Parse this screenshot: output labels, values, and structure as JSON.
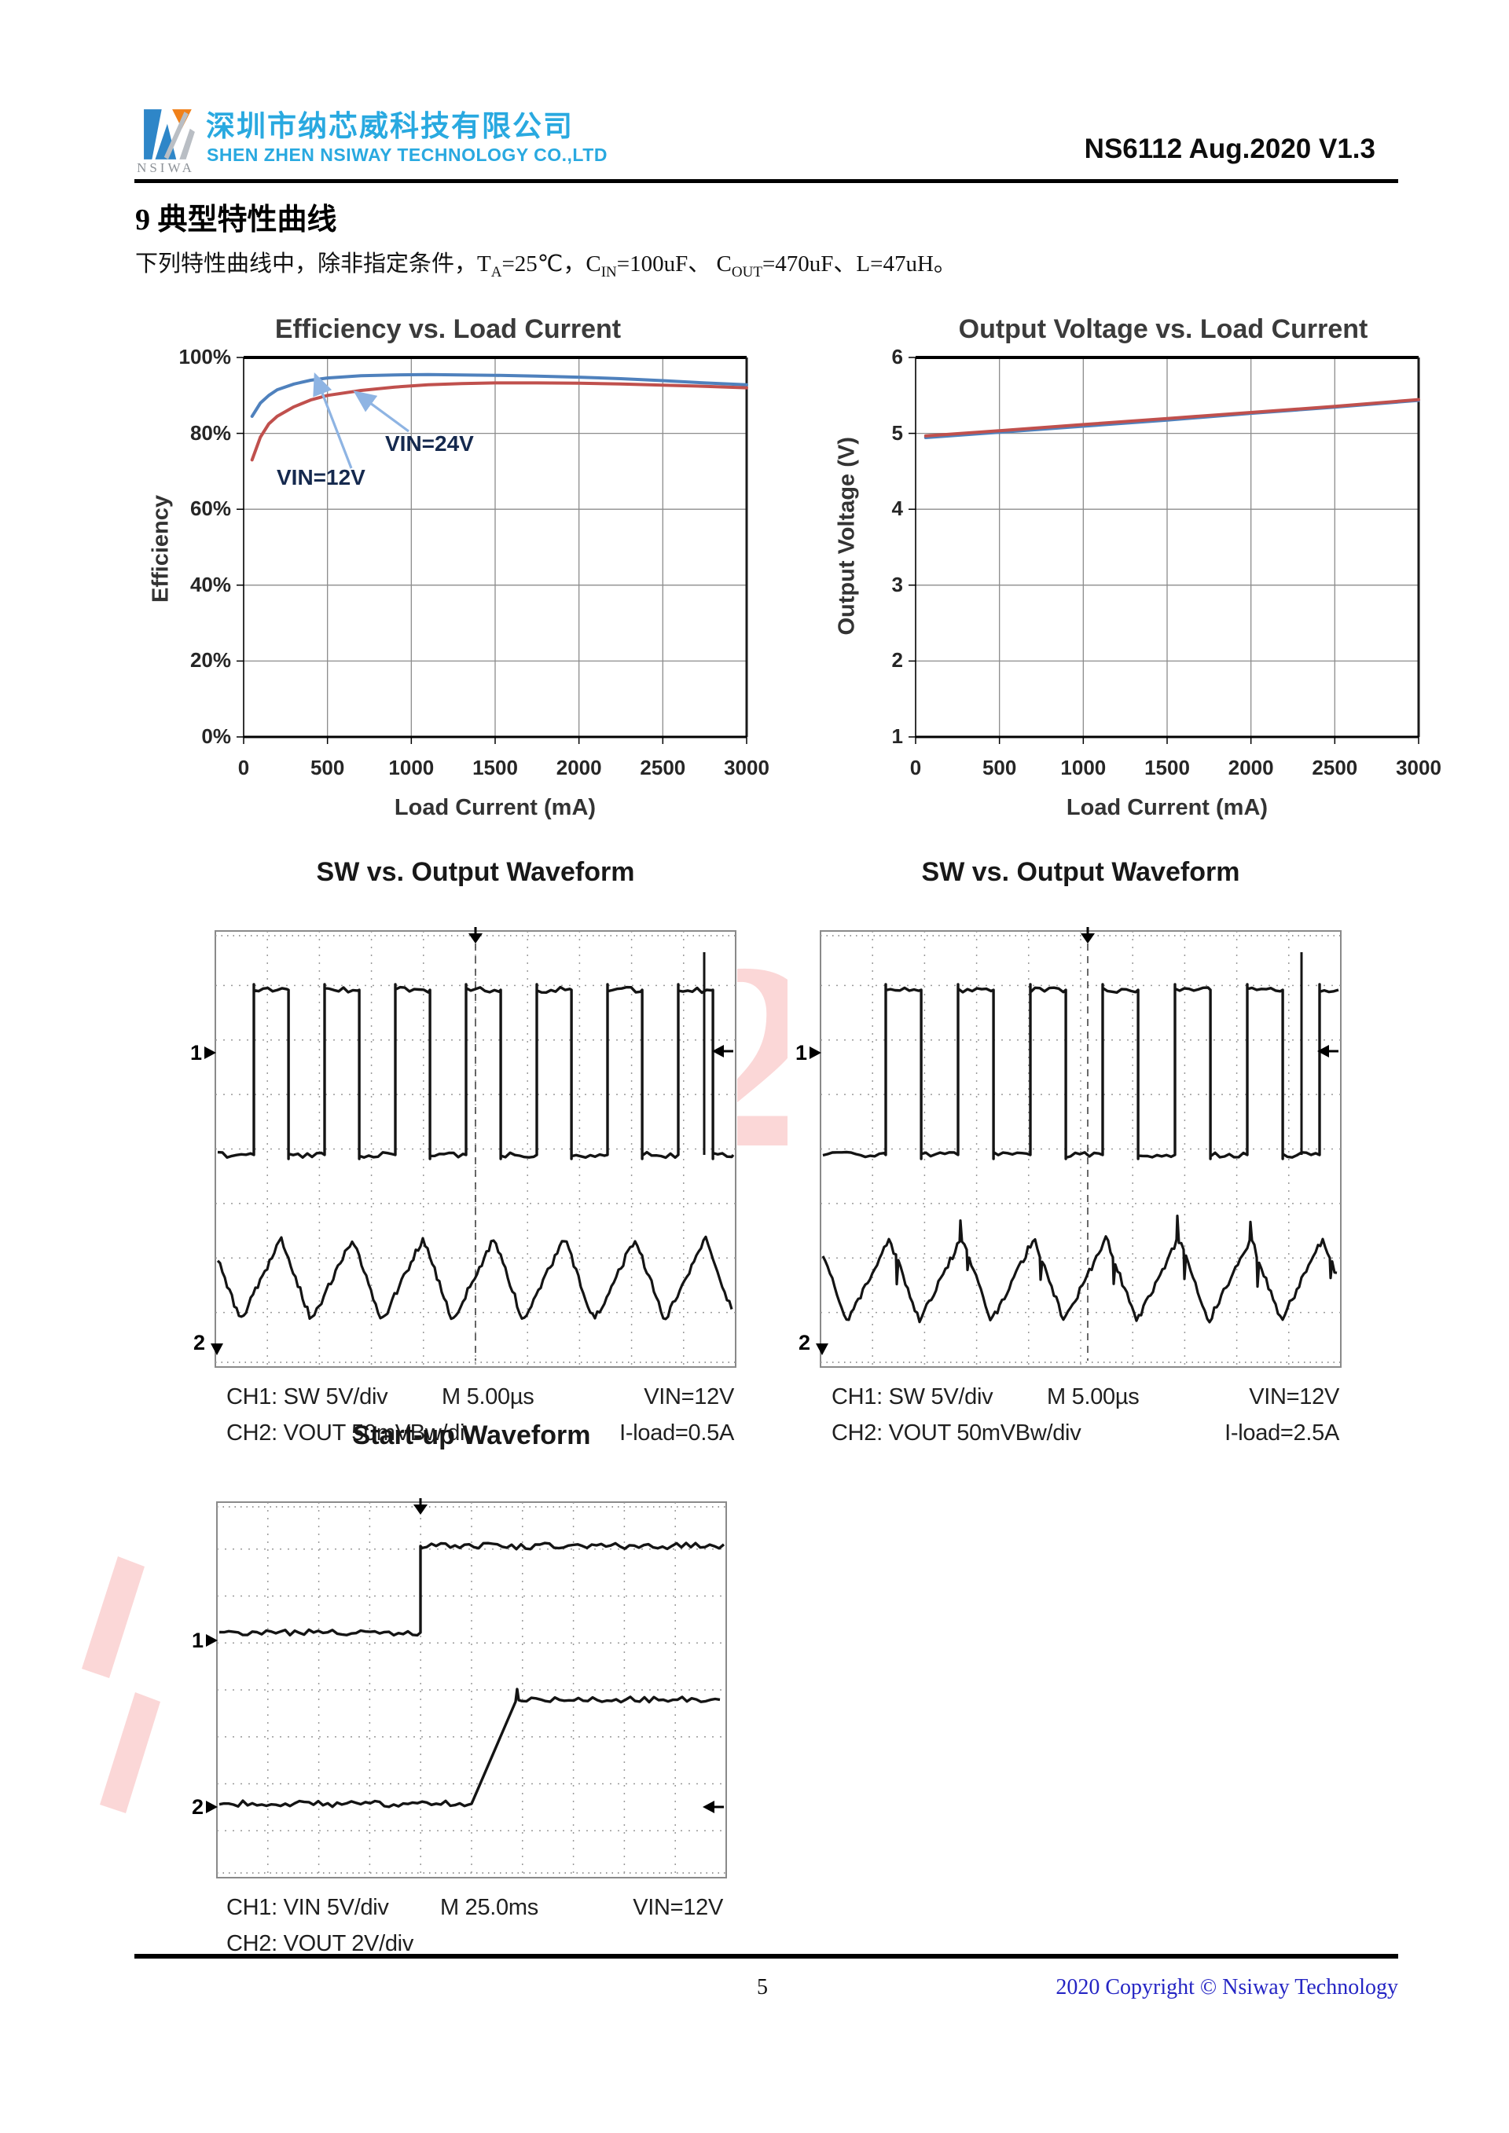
{
  "header": {
    "logo_text": "NSIWA",
    "company_cn": "深圳市纳芯威科技有限公司",
    "company_en": "SHEN ZHEN NSIWAY TECHNOLOGY CO.,LTD",
    "doc_code": "NS6112 Aug.2020 V1.3",
    "brand_color": "#29a9e0",
    "logo_blue": "#2e86c8",
    "logo_orange": "#f08019"
  },
  "section": {
    "title": "9 典型特性曲线",
    "cond": {
      "p1": "下列特性曲线中，除非指定条件，T",
      "s1": "A",
      "p2": "=25℃，C",
      "s2": "IN",
      "p3": "=100uF、 C",
      "s3": "OUT",
      "p4": "=470uF、L=47uH。"
    }
  },
  "chart_data": [
    {
      "id": "efficiency",
      "type": "line",
      "title": "Efficiency vs. Load Current",
      "xlabel": "Load Current (mA)",
      "ylabel": "Efficiency",
      "xlim": [
        0,
        3000
      ],
      "ylim": [
        0,
        100
      ],
      "grid": "on",
      "xticks": [
        "0",
        "500",
        "1000",
        "1500",
        "2000",
        "2500",
        "3000"
      ],
      "yticks": [
        "100%",
        "80%",
        "60%",
        "40%",
        "20%",
        "0%"
      ],
      "x": [
        50,
        100,
        150,
        200,
        300,
        400,
        500,
        700,
        900,
        1100,
        1300,
        1500,
        1750,
        2000,
        2250,
        2500,
        2750,
        3000
      ],
      "series": [
        {
          "name": "VIN=12V",
          "color": "#4f81bd",
          "values": [
            84.5,
            88,
            90,
            91.5,
            93,
            94,
            94.6,
            95.2,
            95.4,
            95.5,
            95.4,
            95.3,
            95.1,
            94.8,
            94.4,
            93.9,
            93.3,
            92.8
          ]
        },
        {
          "name": "VIN=24V",
          "color": "#c0504d",
          "values": [
            73,
            79,
            82.5,
            84.5,
            87,
            88.8,
            90,
            91.3,
            92.2,
            92.8,
            93.1,
            93.3,
            93.3,
            93.2,
            93,
            92.7,
            92.4,
            92
          ]
        }
      ],
      "annotations": [
        {
          "label": "VIN=12V"
        },
        {
          "label": "VIN=24V"
        }
      ],
      "arrow_color": "#8eb4e3"
    },
    {
      "id": "output-voltage",
      "type": "line",
      "title": "Output Voltage vs. Load Current",
      "xlabel": "Load Current (mA)",
      "ylabel": "Output Voltage (V)",
      "xlim": [
        0,
        3000
      ],
      "ylim": [
        1,
        6
      ],
      "grid": "on",
      "xticks": [
        "0",
        "500",
        "1000",
        "1500",
        "2000",
        "2500",
        "3000"
      ],
      "yticks": [
        "6",
        "5",
        "4",
        "3",
        "2",
        "1"
      ],
      "x": [
        60,
        500,
        1000,
        1500,
        2000,
        2500,
        3000
      ],
      "series": [
        {
          "name": "VIN=12V",
          "color": "#4f81bd",
          "values": [
            4.96,
            5.03,
            5.11,
            5.19,
            5.28,
            5.36,
            5.45
          ]
        },
        {
          "name": "VIN=24V",
          "color": "#c0504d",
          "values": [
            4.95,
            5.02,
            5.1,
            5.18,
            5.26,
            5.34,
            5.43
          ]
        }
      ]
    }
  ],
  "scopes": [
    {
      "id": "sw-wave-1",
      "title": "SW vs. Output Waveform",
      "ch1": "CH1: SW  5V/div",
      "timebase": "M 5.00µs",
      "cond1": "VIN=12V",
      "ch2": "CH2: VOUT  50mVBw/div",
      "cond2": "I-load=0.5A",
      "markers": {
        "ch1": "1",
        "ch2": "2"
      }
    },
    {
      "id": "sw-wave-2",
      "title": "SW vs. Output Waveform",
      "ch1": "CH1: SW  5V/div",
      "timebase": "M 5.00µs",
      "cond1": "VIN=12V",
      "ch2": "CH2: VOUT  50mVBw/div",
      "cond2": "I-load=2.5A",
      "markers": {
        "ch1": "1",
        "ch2": "2"
      }
    },
    {
      "id": "startup",
      "title": "Start-up Waveform",
      "ch1": "CH1: VIN  5V/div",
      "timebase": "M 25.0ms",
      "cond1": "VIN=12V",
      "ch2": "CH2: VOUT  2V/div",
      "cond2": "",
      "markers": {
        "ch1": "1",
        "ch2": "2"
      }
    }
  ],
  "watermark_color": "#fbd7d7",
  "footer": {
    "page": "5",
    "copyright": "2020 Copyright © Nsiway Technology"
  }
}
